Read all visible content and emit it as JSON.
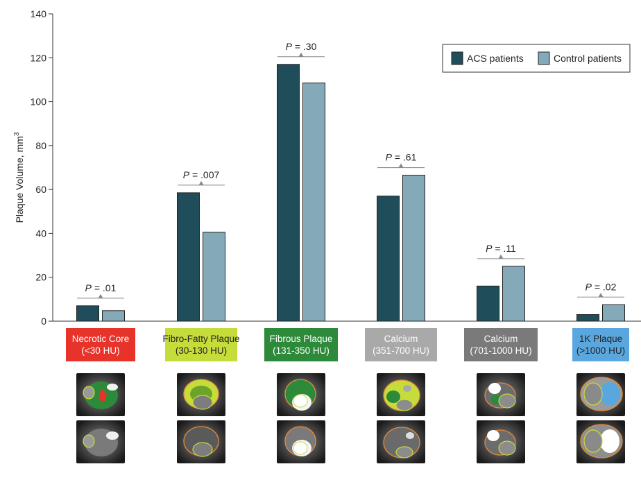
{
  "chart_data": {
    "type": "bar",
    "ylabel": "Plaque Volume, mm",
    "ylabel_sup": "3",
    "ylim": [
      0,
      140
    ],
    "yticks": [
      0,
      20,
      40,
      60,
      80,
      100,
      120,
      140
    ],
    "grid": false,
    "legend_position": "top-right",
    "categories": [
      {
        "line1": "Necrotic Core",
        "line2": "(<30 HU)",
        "color": "#e8332b",
        "text_color": "#ffffff"
      },
      {
        "line1": "Fibro-Fatty Plaque",
        "line2": "(30-130 HU)",
        "color": "#c6dc3a",
        "text_color": "#222222"
      },
      {
        "line1": "Fibrous Plaque",
        "line2": "(131-350 HU)",
        "color": "#2d8a3a",
        "text_color": "#ffffff"
      },
      {
        "line1": "Calcium",
        "line2": "(351-700 HU)",
        "color": "#a9a9a9",
        "text_color": "#ffffff"
      },
      {
        "line1": "Calcium",
        "line2": "(701-1000 HU)",
        "color": "#7a7a7a",
        "text_color": "#ffffff"
      },
      {
        "line1": "1K Plaque",
        "line2": "(>1000 HU)",
        "color": "#5aa7e0",
        "text_color": "#222222"
      }
    ],
    "series": [
      {
        "name": "ACS patients",
        "color": "#1f4e5a",
        "values": [
          7.0,
          58.5,
          117.0,
          57.0,
          16.0,
          3.0
        ]
      },
      {
        "name": "Control patients",
        "color": "#84a9b8",
        "values": [
          4.8,
          40.5,
          108.5,
          66.5,
          25.0,
          7.5
        ]
      }
    ],
    "p_values": [
      {
        "label": "P",
        "value": " = .01"
      },
      {
        "label": "P",
        "value": " = .007"
      },
      {
        "label": "P",
        "value": " = .30"
      },
      {
        "label": "P",
        "value": " = .61"
      },
      {
        "label": "P",
        "value": " = .11"
      },
      {
        "label": "P",
        "value": " = .02"
      }
    ]
  },
  "thumbnails": [
    {
      "top": "necrotic-core-highlight",
      "bottom": "necrotic-core-plain"
    },
    {
      "top": "fibro-fatty-highlight",
      "bottom": "fibro-fatty-plain"
    },
    {
      "top": "fibrous-highlight",
      "bottom": "fibrous-plain"
    },
    {
      "top": "calcium-351-700-highlight",
      "bottom": "calcium-351-700-plain"
    },
    {
      "top": "calcium-701-1000-highlight",
      "bottom": "calcium-701-1000-plain"
    },
    {
      "top": "1k-plaque-highlight",
      "bottom": "1k-plaque-plain"
    }
  ]
}
